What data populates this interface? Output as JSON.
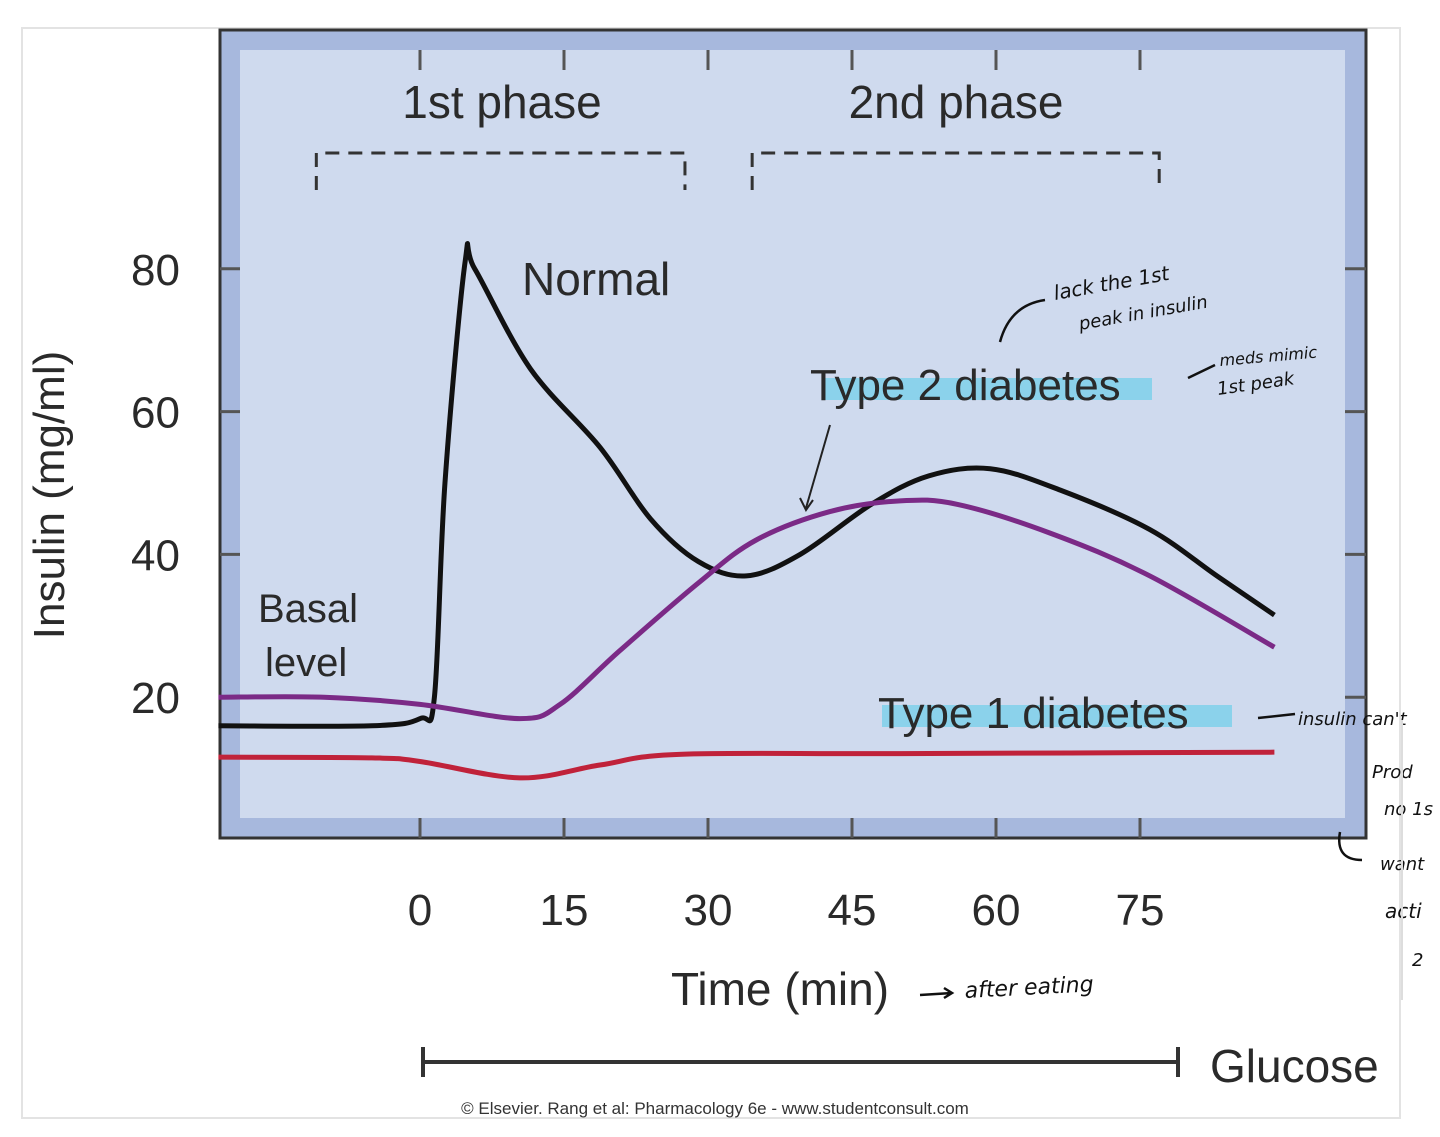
{
  "chart_data": {
    "type": "line",
    "title": "",
    "xlabel": "Time (min)",
    "ylabel": "Insulin (mg/ml)",
    "xlim": [
      -21,
      98.5
    ],
    "ylim": [
      0,
      100
    ],
    "x_ticks": [
      0,
      15,
      30,
      45,
      60,
      75
    ],
    "y_ticks": [
      20,
      40,
      60,
      80
    ],
    "grid": false,
    "series": [
      {
        "name": "Normal",
        "color": "#111111",
        "points": [
          [
            -21,
            16
          ],
          [
            -5,
            16
          ],
          [
            0,
            17
          ],
          [
            1.5,
            20
          ],
          [
            2.6,
            50
          ],
          [
            4.7,
            81
          ],
          [
            5.7,
            80
          ],
          [
            11.5,
            66
          ],
          [
            18.75,
            55
          ],
          [
            24,
            45
          ],
          [
            29,
            39
          ],
          [
            34,
            37
          ],
          [
            39.6,
            40
          ],
          [
            47,
            47
          ],
          [
            53,
            51
          ],
          [
            59.4,
            52
          ],
          [
            66.7,
            49
          ],
          [
            76,
            43.5
          ],
          [
            83,
            37
          ],
          [
            89,
            31.5
          ]
        ]
      },
      {
        "name": "Type 2 diabetes",
        "color": "#7b2a86",
        "points": [
          [
            -21,
            20
          ],
          [
            -10,
            20
          ],
          [
            0,
            19
          ],
          [
            10.4,
            17
          ],
          [
            14.6,
            19
          ],
          [
            20.8,
            26.5
          ],
          [
            29,
            36
          ],
          [
            35,
            42
          ],
          [
            42.7,
            46
          ],
          [
            50,
            47.5
          ],
          [
            56,
            47
          ],
          [
            65.6,
            43
          ],
          [
            76,
            37
          ],
          [
            89,
            27
          ]
        ]
      },
      {
        "name": "Type 1 diabetes",
        "color": "#c0223a",
        "points": [
          [
            -21,
            11.6
          ],
          [
            -5,
            11.5
          ],
          [
            0,
            11
          ],
          [
            10.4,
            8.7
          ],
          [
            18.75,
            10.5
          ],
          [
            27,
            12
          ],
          [
            50,
            12.1
          ],
          [
            89,
            12.3
          ]
        ]
      }
    ],
    "annotations": {
      "basal_label": [
        "Basal",
        "level"
      ],
      "phase1": {
        "label": "1st phase",
        "range": [
          -10.8,
          27.6
        ]
      },
      "phase2": {
        "label": "2nd phase",
        "range": [
          34.6,
          77
        ]
      },
      "glucose": {
        "label": "Glucose",
        "range": [
          0.3,
          79
        ]
      }
    },
    "highlight_color": "#7fd0ea",
    "background_color": "#cfdaee",
    "frame_color": "#a7b8dd"
  },
  "handwritten": {
    "type2_note": [
      "lack the 1st",
      "peak in insulin"
    ],
    "type2_note2": [
      "meds mimic",
      "1st peak"
    ],
    "type1_note": [
      "insulin can't",
      "Prod",
      "no 1s",
      "want",
      "acti",
      "2"
    ],
    "time_note": "after eating"
  },
  "credit": "© Elsevier. Rang et al: Pharmacology 6e - www.studentconsult.com"
}
